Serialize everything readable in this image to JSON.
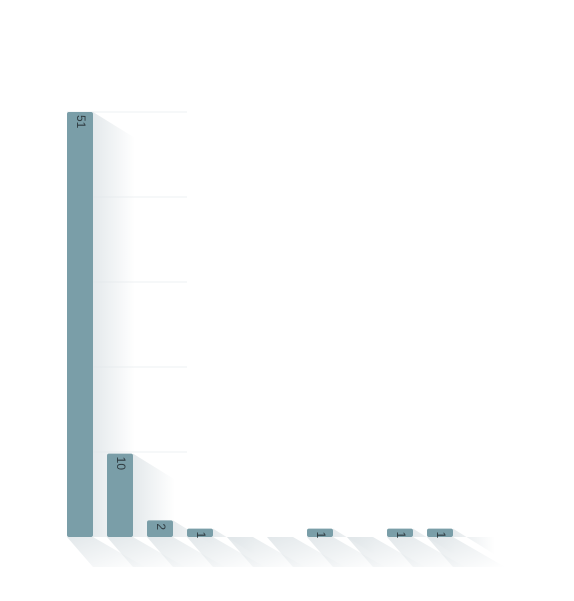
{
  "chart_data": {
    "type": "bar",
    "title": "",
    "xlabel": "",
    "ylabel": "",
    "categories": [
      "",
      "",
      "",
      "",
      "",
      "",
      "",
      "",
      "",
      ""
    ],
    "values": [
      51,
      10,
      2,
      1,
      0,
      0,
      1,
      0,
      1,
      1
    ],
    "ylim": [
      0,
      51
    ],
    "grid": true,
    "legend": "none",
    "colors": {
      "bar": "#7a9ea8",
      "bar_top": "#86a9b2",
      "shadow": "#dfe5e8",
      "grid": "#eef1f3",
      "label": "#2f3b40",
      "background": "#ffffff"
    }
  }
}
